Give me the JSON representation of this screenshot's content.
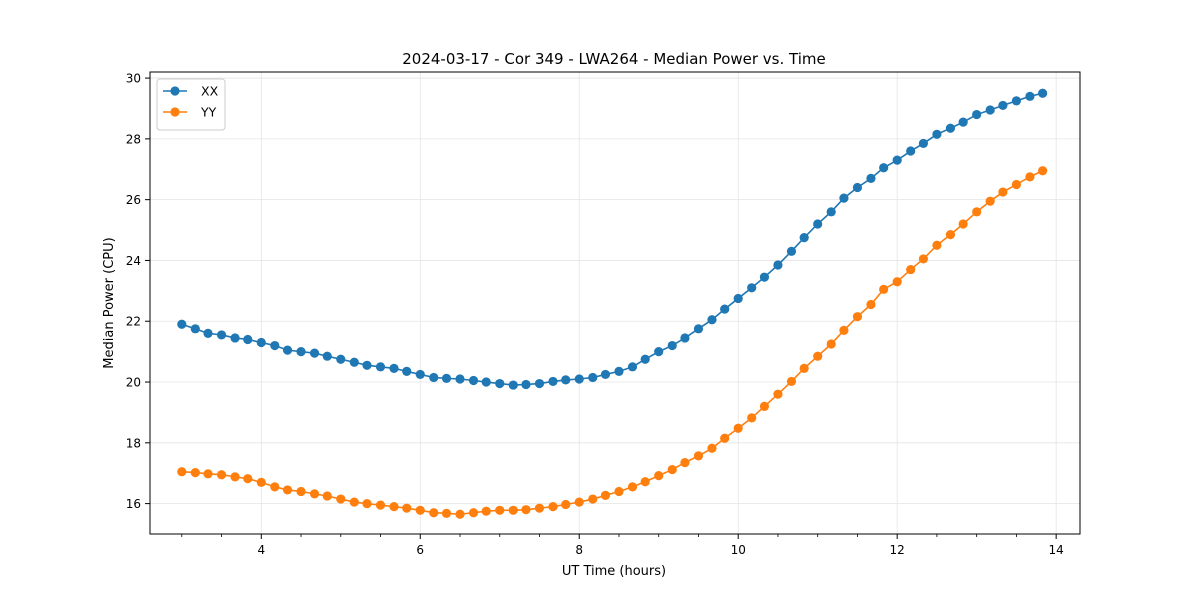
{
  "chart_data": {
    "type": "line",
    "title": "2024-03-17 - Cor 349 - LWA264 - Median Power vs. Time",
    "xlabel": "UT Time (hours)",
    "ylabel": "Median Power (CPU)",
    "xlim": [
      2.6,
      14.3
    ],
    "ylim": [
      15.0,
      30.2
    ],
    "xticks": [
      4,
      6,
      8,
      10,
      12,
      14
    ],
    "xtick_labels": [
      "4",
      "6",
      "8",
      "10",
      "12",
      "14"
    ],
    "xminor_ticks": [
      2.5,
      3,
      3.5,
      4.5,
      5,
      5.5,
      6.5,
      7,
      7.5,
      8.5,
      9,
      9.5,
      10.5,
      11,
      11.5,
      12.5,
      13,
      13.5
    ],
    "yticks": [
      16,
      18,
      20,
      22,
      24,
      26,
      28,
      30
    ],
    "ytick_labels": [
      "16",
      "18",
      "20",
      "22",
      "24",
      "26",
      "28",
      "30"
    ],
    "grid": true,
    "legend_position": "top-left",
    "x": [
      3.0,
      3.17,
      3.33,
      3.5,
      3.67,
      3.83,
      4.0,
      4.17,
      4.33,
      4.5,
      4.67,
      4.83,
      5.0,
      5.17,
      5.33,
      5.5,
      5.67,
      5.83,
      6.0,
      6.17,
      6.33,
      6.5,
      6.67,
      6.83,
      7.0,
      7.17,
      7.33,
      7.5,
      7.67,
      7.83,
      8.0,
      8.17,
      8.33,
      8.5,
      8.67,
      8.83,
      9.0,
      9.17,
      9.33,
      9.5,
      9.67,
      9.83,
      10.0,
      10.17,
      10.33,
      10.5,
      10.67,
      10.83,
      11.0,
      11.17,
      11.33,
      11.5,
      11.67,
      11.83,
      12.0,
      12.17,
      12.33,
      12.5,
      12.67,
      12.83,
      13.0,
      13.17,
      13.33,
      13.5,
      13.67,
      13.83
    ],
    "series": [
      {
        "name": "XX",
        "color": "#1f77b4",
        "values": [
          21.9,
          21.75,
          21.6,
          21.55,
          21.45,
          21.4,
          21.3,
          21.2,
          21.05,
          21.0,
          20.95,
          20.85,
          20.75,
          20.65,
          20.55,
          20.5,
          20.45,
          20.35,
          20.25,
          20.15,
          20.12,
          20.1,
          20.05,
          20.0,
          19.95,
          19.9,
          19.92,
          19.95,
          20.02,
          20.07,
          20.1,
          20.15,
          20.25,
          20.35,
          20.5,
          20.75,
          21.0,
          21.2,
          21.45,
          21.75,
          22.05,
          22.4,
          22.75,
          23.1,
          23.45,
          23.85,
          24.3,
          24.75,
          25.2,
          25.6,
          26.05,
          26.4,
          26.7,
          27.05,
          27.3,
          27.6,
          27.85,
          28.15,
          28.35,
          28.55,
          28.8,
          28.95,
          29.1,
          29.25,
          29.4,
          29.5
        ]
      },
      {
        "name": "YY",
        "color": "#ff7f0e",
        "values": [
          17.05,
          17.02,
          16.98,
          16.95,
          16.88,
          16.82,
          16.7,
          16.55,
          16.45,
          16.4,
          16.32,
          16.25,
          16.15,
          16.05,
          16.0,
          15.95,
          15.9,
          15.85,
          15.78,
          15.7,
          15.68,
          15.65,
          15.7,
          15.75,
          15.78,
          15.78,
          15.8,
          15.85,
          15.9,
          15.97,
          16.05,
          16.15,
          16.27,
          16.4,
          16.55,
          16.72,
          16.92,
          17.12,
          17.35,
          17.57,
          17.82,
          18.15,
          18.48,
          18.82,
          19.2,
          19.6,
          20.02,
          20.45,
          20.85,
          21.25,
          21.7,
          22.15,
          22.55,
          23.05,
          23.3,
          23.7,
          24.05,
          24.5,
          24.85,
          25.2,
          25.6,
          25.95,
          26.25,
          26.5,
          26.75,
          26.95
        ]
      }
    ]
  }
}
